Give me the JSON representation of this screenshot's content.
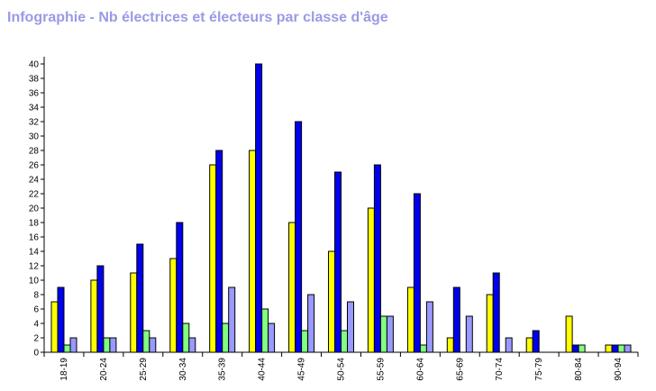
{
  "chart_data": {
    "type": "bar",
    "title": "Infographie - Nb électrices et électeurs par classe d'âge",
    "categories": [
      "18-19",
      "20-24",
      "25-29",
      "30-34",
      "35-39",
      "40-44",
      "45-49",
      "50-54",
      "55-59",
      "60-64",
      "65-69",
      "70-74",
      "75-79",
      "80-84",
      "90-94"
    ],
    "series": [
      {
        "color": "#ffff00",
        "values": [
          7,
          10,
          11,
          13,
          26,
          28,
          18,
          14,
          20,
          9,
          2,
          8,
          2,
          5,
          1
        ]
      },
      {
        "color": "#0000ee",
        "values": [
          9,
          12,
          15,
          18,
          28,
          40,
          32,
          25,
          26,
          22,
          9,
          11,
          3,
          1,
          1
        ]
      },
      {
        "color": "#80ff80",
        "values": [
          1,
          2,
          3,
          4,
          4,
          6,
          3,
          3,
          5,
          1,
          0,
          0,
          0,
          1,
          1
        ]
      },
      {
        "color": "#9999ff",
        "values": [
          2,
          2,
          2,
          2,
          9,
          4,
          8,
          7,
          5,
          7,
          5,
          2,
          0,
          0,
          1
        ]
      }
    ],
    "ylim": [
      0,
      40
    ],
    "ytick_step": 2,
    "legend": "none",
    "grid": false
  }
}
